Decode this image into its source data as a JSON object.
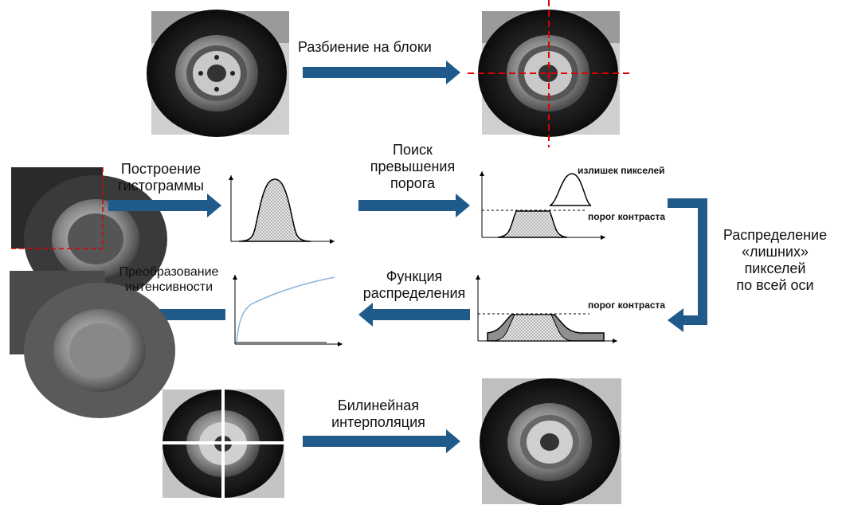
{
  "labels": {
    "split": "Разбиение на блоки",
    "histogram": [
      "Построение",
      "гистограммы"
    ],
    "threshold_search": [
      "Поиск",
      "превышения",
      "порога"
    ],
    "redistribute": [
      "Распределение",
      "«лишних»",
      "пикселей",
      "по всей оси"
    ],
    "distribution_function": [
      "Функция",
      "распределения"
    ],
    "intensity_transform": [
      "Преобразование",
      "интенсивности"
    ],
    "interpolation": [
      "Билинейная",
      "интерполяция"
    ],
    "excess_pixels": "излишек пикселей",
    "contrast_threshold_1": "порог контраста",
    "contrast_threshold_2": "порог контраста"
  },
  "colors": {
    "arrow": "#1f5a8a",
    "split_lines": "#e00000",
    "curve_blue": "#8ab4dc",
    "fill_dots": "#bdbdbd",
    "fill_dark": "#8f8f8f"
  }
}
